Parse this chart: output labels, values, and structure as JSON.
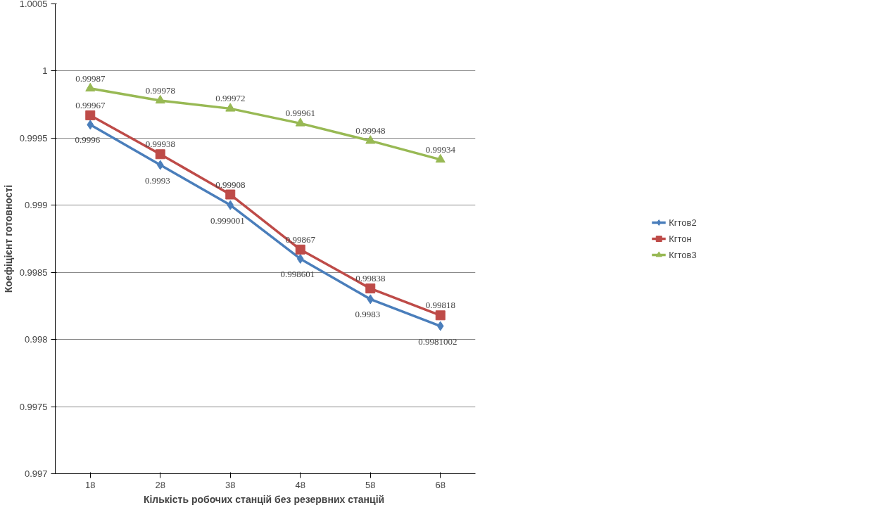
{
  "chart_data": {
    "type": "line",
    "xlabel": "Кількість  робочих станцій без резервних станцій",
    "ylabel": "Коефіцієнт готовності",
    "categories": [
      "18",
      "28",
      "38",
      "48",
      "58",
      "68"
    ],
    "series": [
      {
        "name": "Кгтов2",
        "color": "#4a7ebb",
        "marker": "diamond",
        "values": [
          0.9996,
          0.9993,
          0.999001,
          0.998601,
          0.9983,
          0.9981002
        ]
      },
      {
        "name": "Кгтон",
        "color": "#be4b48",
        "marker": "square",
        "values": [
          0.99967,
          0.99938,
          0.99908,
          0.99867,
          0.99838,
          0.99818
        ]
      },
      {
        "name": "Кгтов3",
        "color": "#98b954",
        "marker": "triangle",
        "values": [
          0.99987,
          0.99978,
          0.99972,
          0.99961,
          0.99948,
          0.99934
        ]
      }
    ],
    "ylim": [
      0.997,
      1.0005
    ],
    "yticks": [
      0.997,
      0.9975,
      0.998,
      0.9985,
      0.999,
      0.9995,
      1,
      1.0005
    ],
    "grid": "y",
    "legend": "right",
    "data_labels": true,
    "line_style": "solid"
  }
}
